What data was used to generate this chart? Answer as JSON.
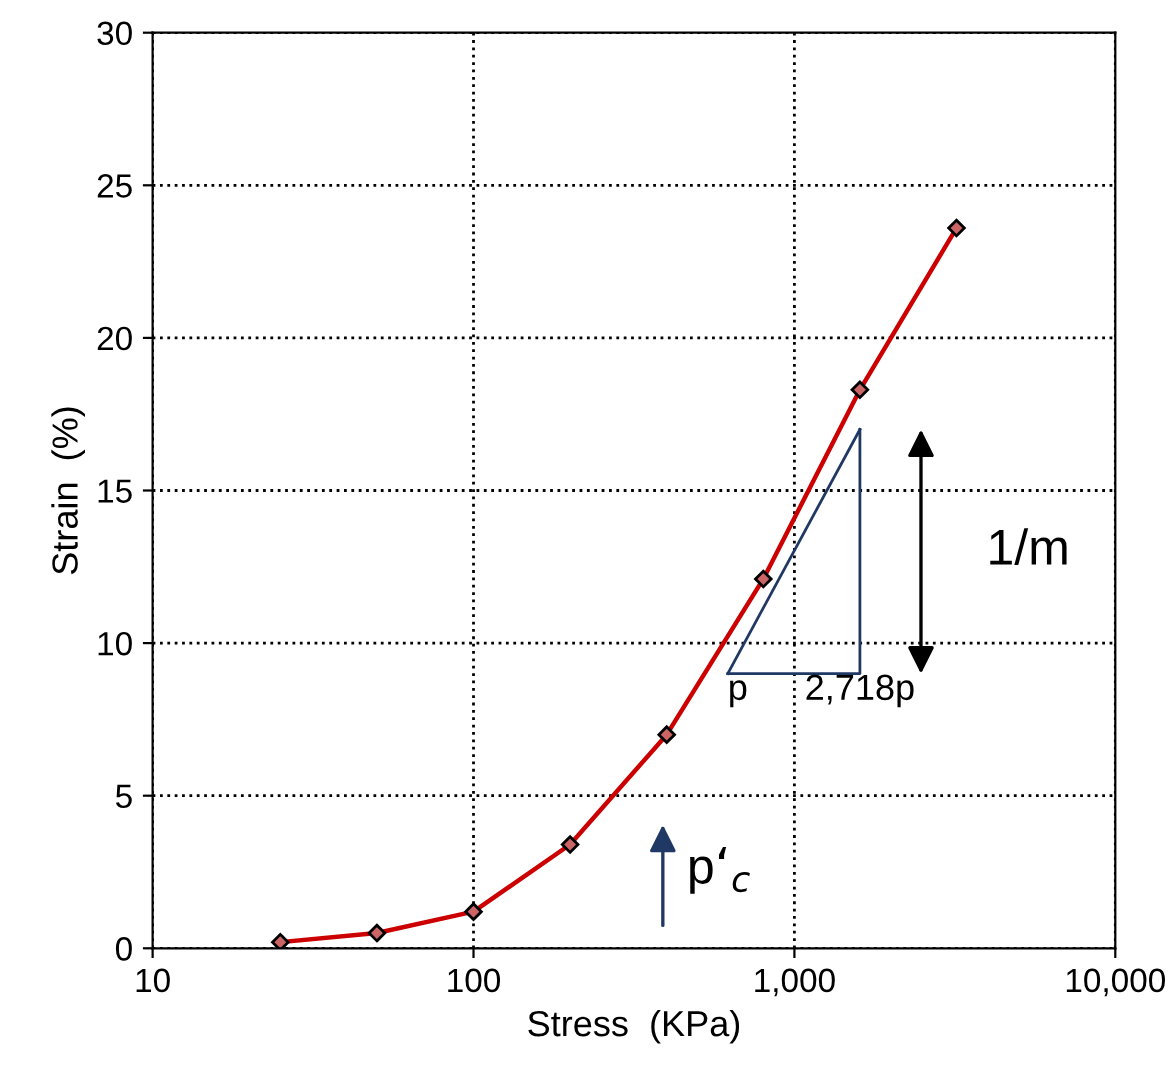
{
  "chart_data": {
    "type": "line",
    "xlabel": "Stress  (KPa)",
    "ylabel": "Strain  (%)",
    "log": "x",
    "xlim": [
      10,
      10000
    ],
    "xticks": [
      10,
      100,
      {
        "value": 1000,
        "label": "1,000"
      },
      {
        "value": 10000,
        "label": "10,000"
      }
    ],
    "ylim": [
      0,
      30
    ],
    "yticks": [
      0,
      5,
      10,
      15,
      20,
      25,
      30
    ],
    "grid": true,
    "series": [
      {
        "color": "#cc0000",
        "marker": "diamond",
        "x": [
          25,
          50,
          100,
          200,
          400,
          800,
          1600,
          3200
        ],
        "values": [
          0.2,
          0.5,
          1.2,
          3.4,
          7.0,
          12.1,
          18.3,
          23.6
        ]
      },
      {
        "color": "#1f3864",
        "marker": "none",
        "x": [
          620,
          1600
        ],
        "values": [
          9,
          17
        ]
      }
    ],
    "annotations": [
      {
        "text": "p",
        "x": 620,
        "y": 9
      },
      "2,718p",
      "1/m",
      "p‘$_{c}$"
    ]
  }
}
